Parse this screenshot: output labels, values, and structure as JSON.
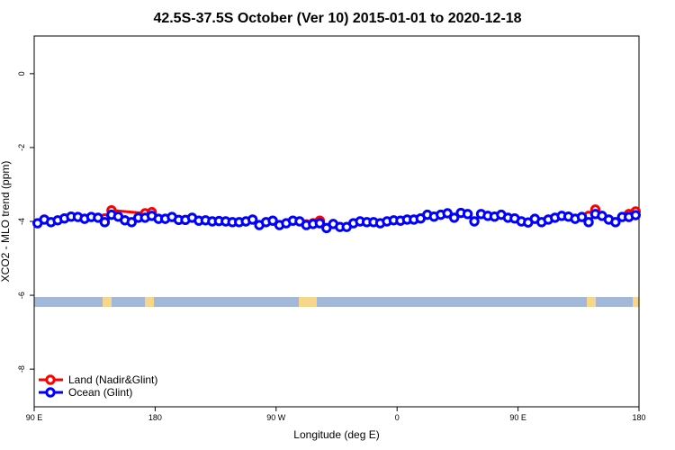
{
  "chart_data": {
    "type": "line",
    "title": "42.5S-37.5S October (Ver 10)   2015-01-01 to 2020-12-18",
    "x_label": "Longitude (deg E)",
    "y_label": "XCO2 - MLO trend (ppm)",
    "xlim": [
      90,
      540
    ],
    "ylim": [
      -9.02,
      1.02
    ],
    "xticks": [
      {
        "value": 90,
        "label": "90 E"
      },
      {
        "value": 180,
        "label": "180"
      },
      {
        "value": 270,
        "label": "90 W"
      },
      {
        "value": 360,
        "label": "0"
      },
      {
        "value": 450,
        "label": "90 E"
      },
      {
        "value": 540,
        "label": "180"
      }
    ],
    "yticks": [
      0,
      -2,
      -4,
      -6,
      -8
    ],
    "legend": "bottom-left",
    "series": [
      {
        "name": "Land (Nadir&Glint)",
        "color": "#ff0000",
        "x": [
          142.5,
          147.5,
          172.5,
          177.5,
          237.5,
          292.5,
          297.5,
          302.5,
          452.5,
          502.5,
          507.5,
          522.5,
          532.5,
          537.5
        ],
        "values": [
          -3.92,
          -3.7,
          -3.78,
          -3.75,
          null,
          -4.08,
          -4.05,
          -3.98,
          null,
          -3.85,
          -3.68,
          null,
          -3.8,
          -3.73
        ]
      },
      {
        "name": "Ocean (Glint)",
        "color": "#0000ff",
        "x": [
          92.5,
          97.5,
          102.5,
          107.5,
          112.5,
          117.5,
          122.5,
          127.5,
          132.5,
          137.5,
          142.5,
          147.5,
          152.5,
          157.5,
          162.5,
          167.5,
          172.5,
          177.5,
          182.5,
          187.5,
          192.5,
          197.5,
          202.5,
          207.5,
          212.5,
          217.5,
          222.5,
          227.5,
          232.5,
          237.5,
          242.5,
          247.5,
          252.5,
          257.5,
          262.5,
          267.5,
          272.5,
          277.5,
          282.5,
          287.5,
          292.5,
          297.5,
          302.5,
          307.5,
          312.5,
          317.5,
          322.5,
          327.5,
          332.5,
          337.5,
          342.5,
          347.5,
          352.5,
          357.5,
          362.5,
          367.5,
          372.5,
          377.5,
          382.5,
          387.5,
          392.5,
          397.5,
          402.5,
          407.5,
          412.5,
          417.5,
          422.5,
          427.5,
          432.5,
          437.5,
          442.5,
          447.5,
          452.5,
          457.5,
          462.5,
          467.5,
          472.5,
          477.5,
          482.5,
          487.5,
          492.5,
          497.5,
          502.5,
          507.5,
          512.5,
          517.5,
          522.5,
          527.5,
          532.5,
          537.5
        ],
        "values": [
          -4.05,
          -3.95,
          -4.02,
          -3.97,
          -3.92,
          -3.87,
          -3.88,
          -3.93,
          -3.88,
          -3.9,
          -4.02,
          -3.82,
          -3.87,
          -3.97,
          -4.02,
          -3.9,
          -3.9,
          -3.85,
          -3.93,
          -3.93,
          -3.88,
          -3.96,
          -3.96,
          -3.9,
          -3.98,
          -3.97,
          -4.0,
          -3.99,
          -4.0,
          -4.02,
          -4.02,
          -4.0,
          -3.95,
          -4.1,
          -4.02,
          -3.98,
          -4.1,
          -4.05,
          -3.98,
          -4.0,
          -4.1,
          -4.07,
          -4.05,
          -4.18,
          -4.07,
          -4.15,
          -4.15,
          -4.05,
          -4.0,
          -4.02,
          -4.02,
          -4.05,
          -4.0,
          -3.97,
          -3.98,
          -3.95,
          -3.95,
          -3.92,
          -3.82,
          -3.87,
          -3.82,
          -3.78,
          -3.9,
          -3.77,
          -3.8,
          -4.0,
          -3.8,
          -3.85,
          -3.87,
          -3.82,
          -3.9,
          -3.92,
          -4.0,
          -4.03,
          -3.93,
          -4.02,
          -3.95,
          -3.9,
          -3.85,
          -3.87,
          -3.93,
          -3.88,
          -4.02,
          -3.8,
          -3.85,
          -3.95,
          -4.02,
          -3.88,
          -3.88,
          -3.83
        ]
      }
    ]
  }
}
